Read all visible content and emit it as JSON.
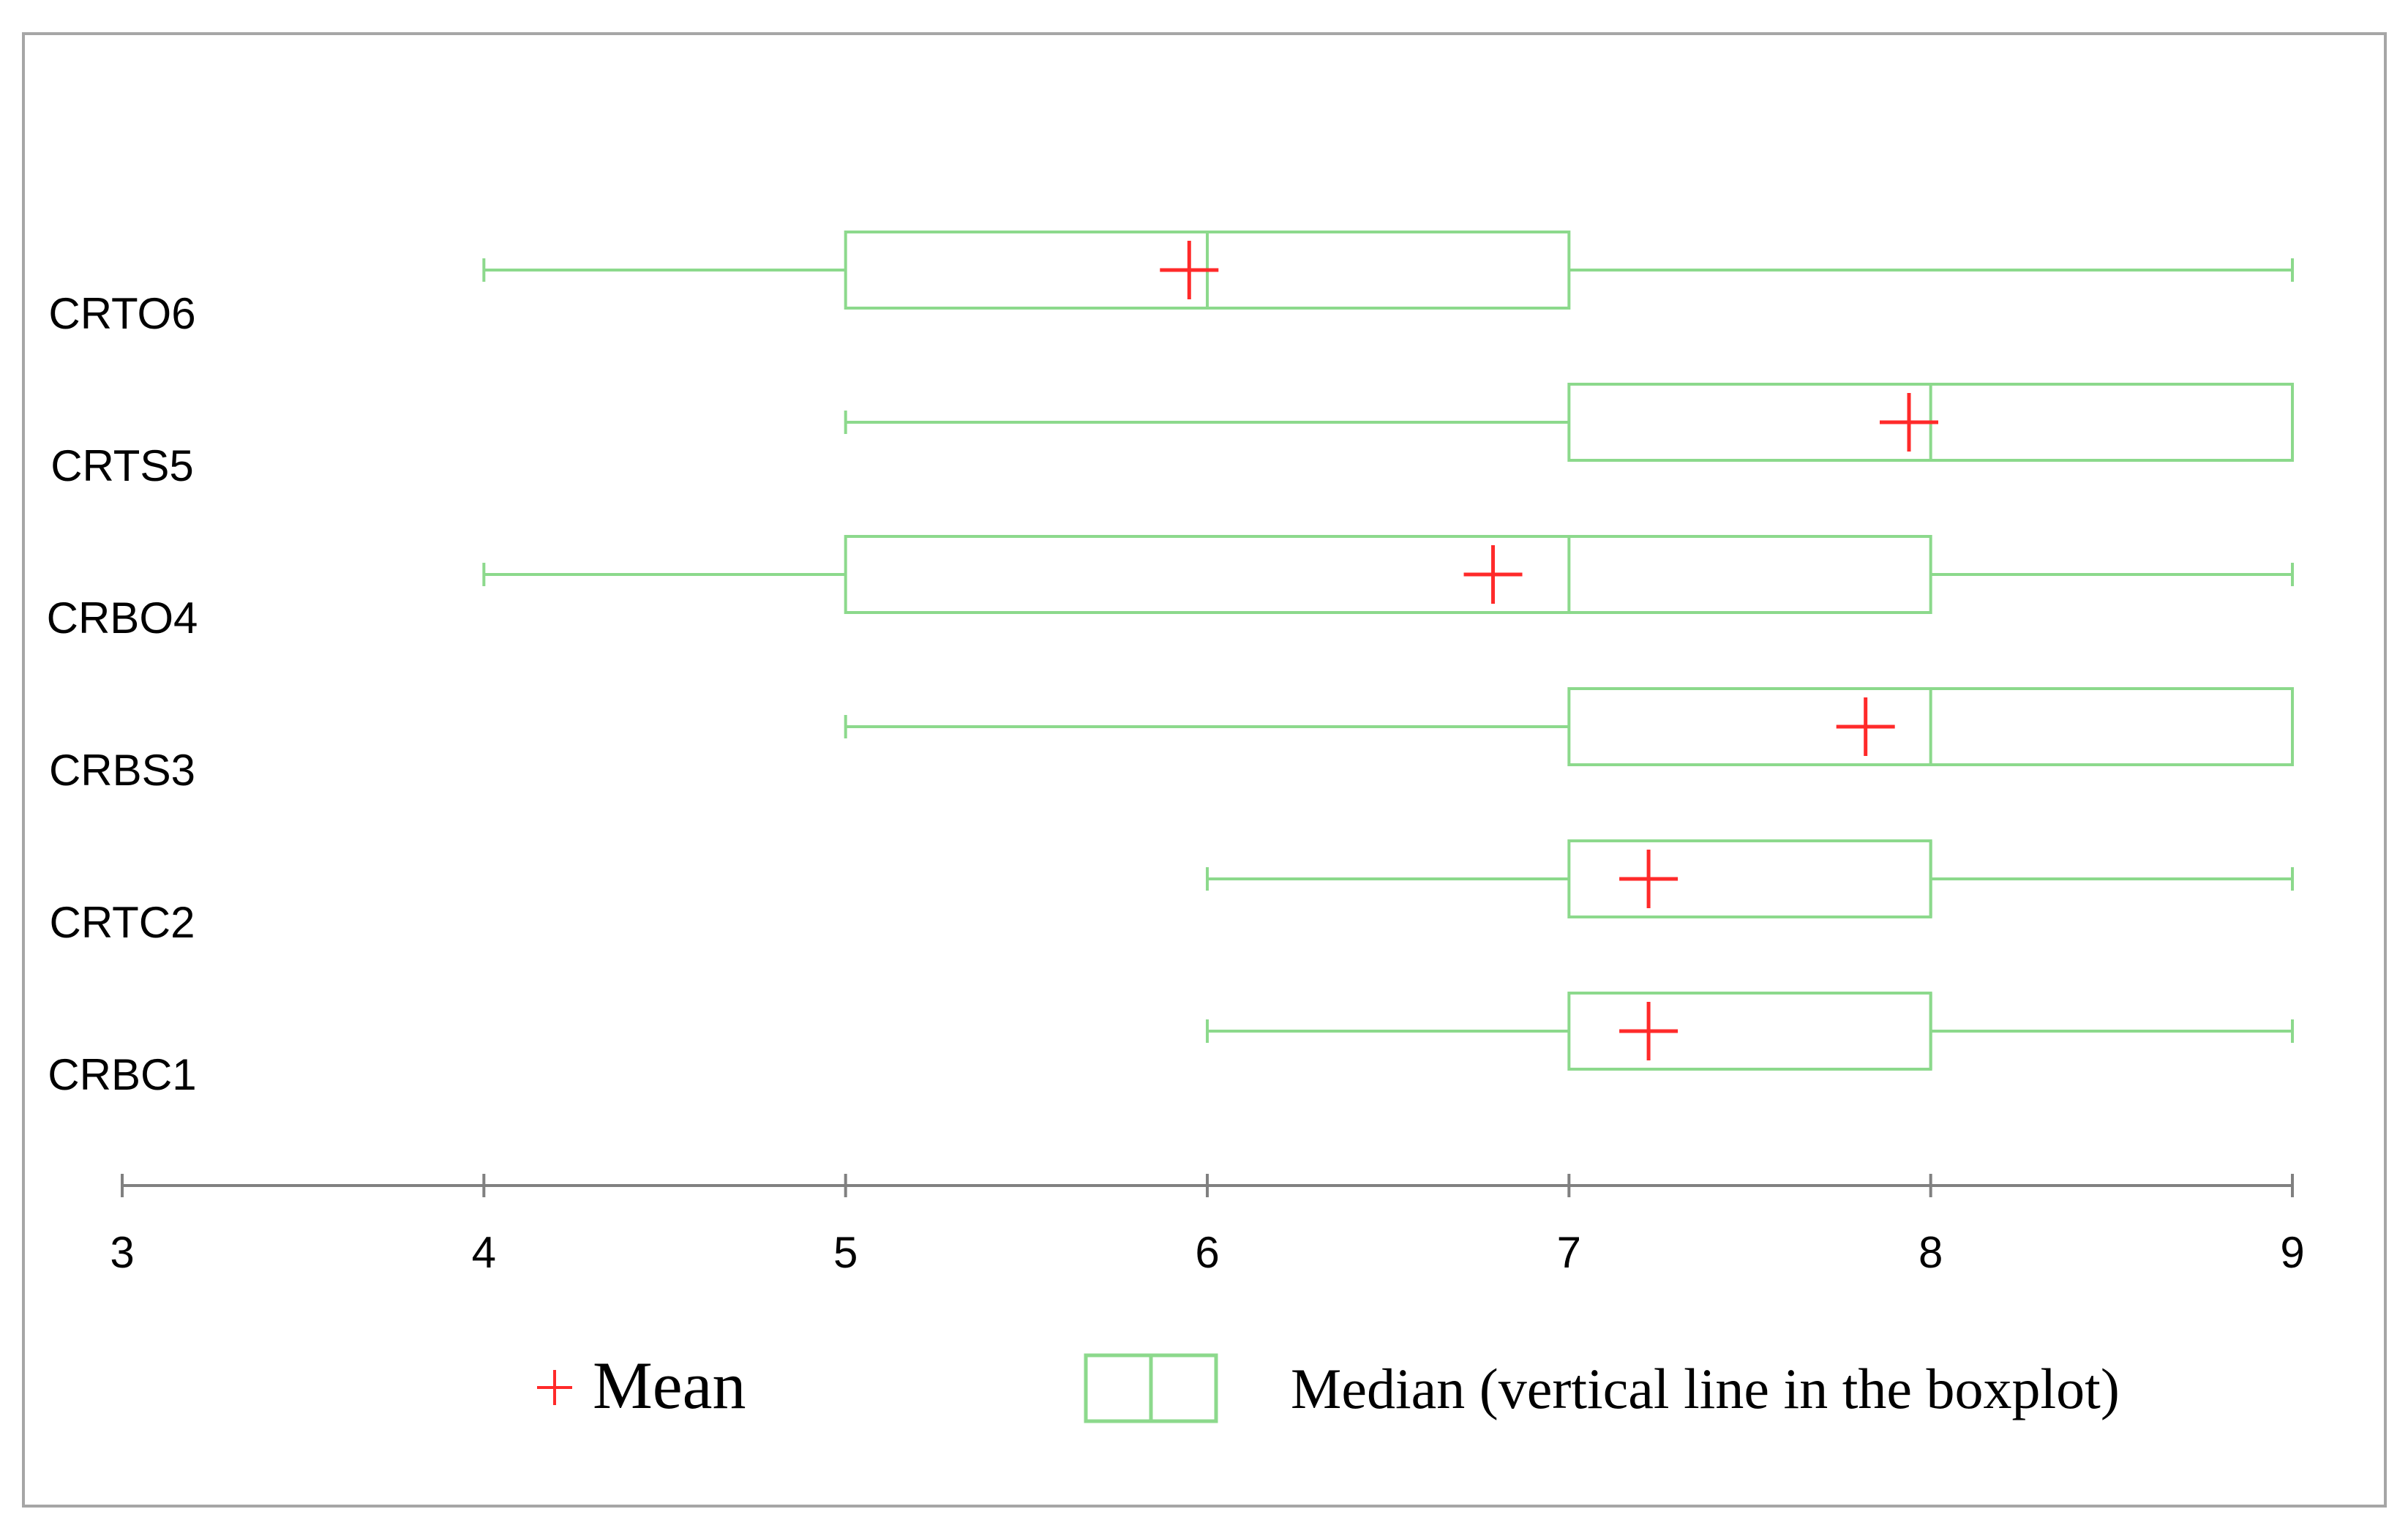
{
  "chart_data": {
    "type": "boxplot",
    "orientation": "horizontal",
    "title": "",
    "xlabel": "",
    "ylabel": "",
    "xlim": [
      3,
      9
    ],
    "x_ticks": [
      "3",
      "4",
      "5",
      "6",
      "7",
      "8",
      "9"
    ],
    "grid": false,
    "colors": {
      "box": "#8cd98c",
      "mean": "#ff2a2a",
      "axis": "#808080"
    },
    "categories": [
      "CRBC1",
      "CRTC2",
      "CRBS3",
      "CRBO4",
      "CRTS5",
      "CRTO6"
    ],
    "series": [
      {
        "name": "CRBC1",
        "min": 6,
        "q1": 7,
        "median": 8,
        "q3": 8,
        "max": 9,
        "mean": 7.22
      },
      {
        "name": "CRTC2",
        "min": 6,
        "q1": 7,
        "median": 8,
        "q3": 8,
        "max": 9,
        "mean": 7.22
      },
      {
        "name": "CRBS3",
        "min": 5,
        "q1": 7,
        "median": 8,
        "q3": 9,
        "max": 9,
        "mean": 7.82
      },
      {
        "name": "CRBO4",
        "min": 4,
        "q1": 5,
        "median": 7,
        "q3": 8,
        "max": 9,
        "mean": 6.79
      },
      {
        "name": "CRTS5",
        "min": 5,
        "q1": 7,
        "median": 8,
        "q3": 9,
        "max": 9,
        "mean": 7.94
      },
      {
        "name": "CRTO6",
        "min": 4,
        "q1": 5,
        "median": 6,
        "q3": 7,
        "max": 9,
        "mean": 5.95
      }
    ],
    "legend": {
      "position": "bottom",
      "mean_label": "Mean",
      "median_label": "Median (vertical line in the boxplot)"
    }
  }
}
